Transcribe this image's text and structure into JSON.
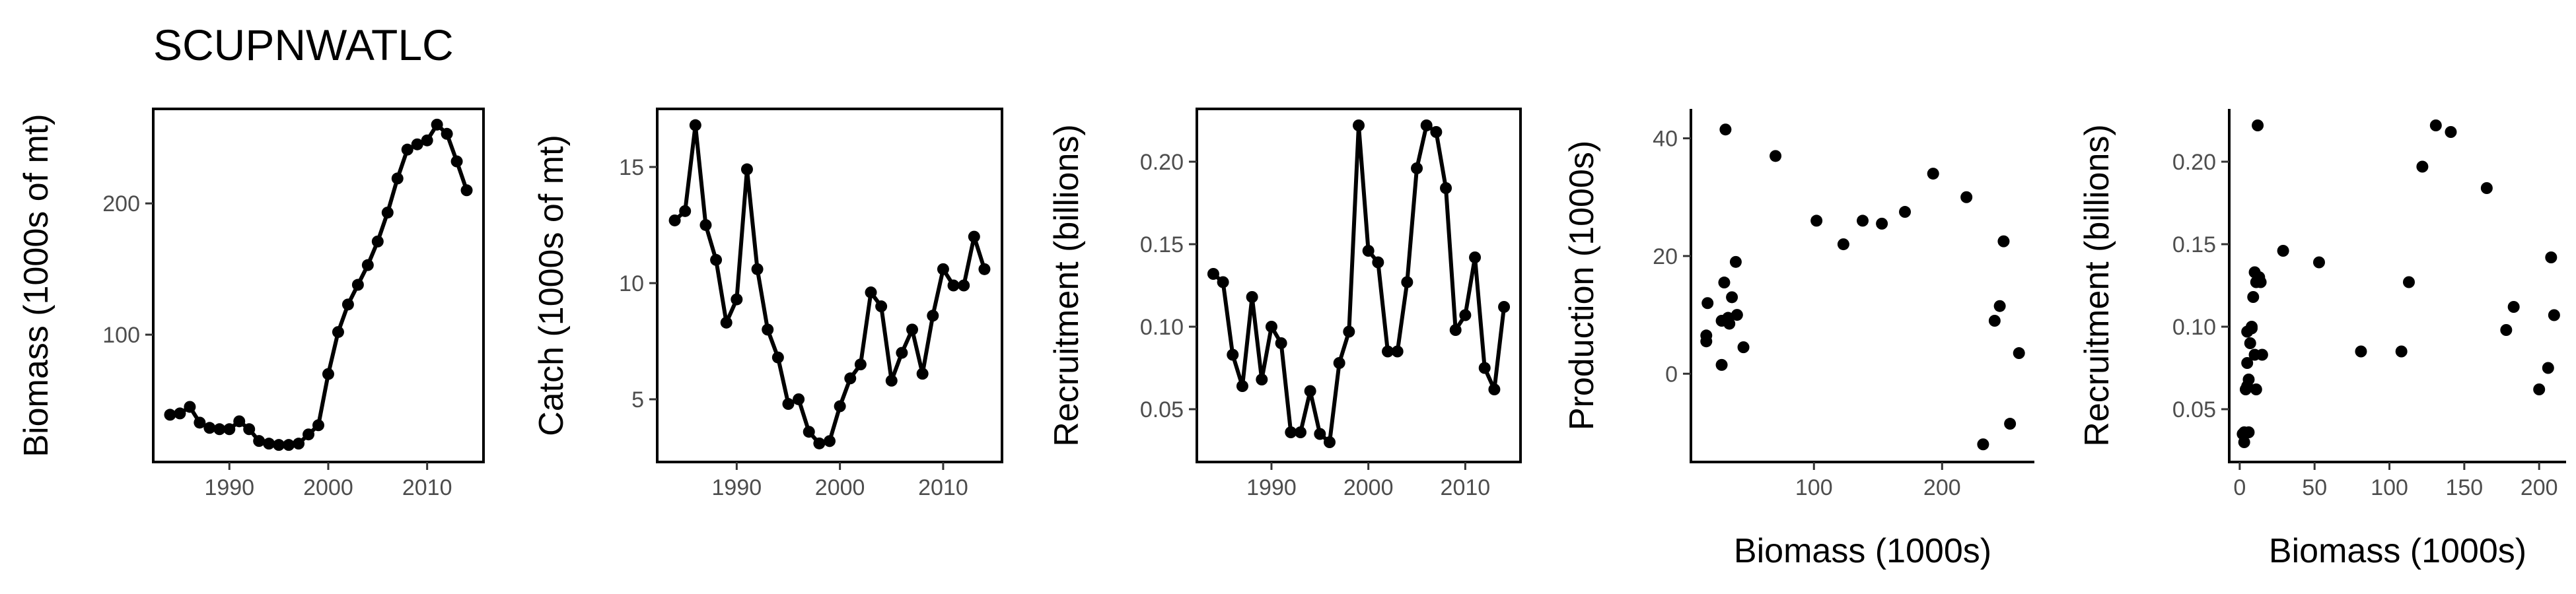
{
  "title": "SCUPNWATLC",
  "colors": {
    "ink": "#000000",
    "tick_text": "#4d4d4d"
  },
  "chart_data": [
    {
      "id": "biomass",
      "type": "line",
      "xlabel": "",
      "ylabel": "Biomass (1000s of mt)",
      "xlim": [
        1982.3,
        2015.7
      ],
      "ylim": [
        3,
        272
      ],
      "xticks": [
        1990,
        2000,
        2010
      ],
      "yticks": [
        100,
        200
      ],
      "x": [
        1984,
        1985,
        1986,
        1987,
        1988,
        1989,
        1990,
        1991,
        1992,
        1993,
        1994,
        1995,
        1996,
        1997,
        1998,
        1999,
        2000,
        2001,
        2002,
        2003,
        2004,
        2005,
        2006,
        2007,
        2008,
        2009,
        2010,
        2011,
        2012,
        2013,
        2014
      ],
      "y": [
        39,
        40,
        45,
        33,
        29,
        28,
        28,
        34,
        28,
        19,
        17,
        16,
        16,
        17,
        24,
        31,
        70,
        102,
        123,
        138,
        153,
        171,
        193,
        219,
        241,
        245,
        248,
        260,
        253,
        232,
        210
      ]
    },
    {
      "id": "catch",
      "type": "line",
      "xlabel": "",
      "ylabel": "Catch (1000s of mt)",
      "xlim": [
        1982.3,
        2015.7
      ],
      "ylim": [
        2.3,
        17.5
      ],
      "xticks": [
        1990,
        2000,
        2010
      ],
      "yticks": [
        5,
        10,
        15
      ],
      "x": [
        1984,
        1985,
        1986,
        1987,
        1988,
        1989,
        1990,
        1991,
        1992,
        1993,
        1994,
        1995,
        1996,
        1997,
        1998,
        1999,
        2000,
        2001,
        2002,
        2003,
        2004,
        2005,
        2006,
        2007,
        2008,
        2009,
        2010,
        2011,
        2012,
        2013,
        2014
      ],
      "y": [
        12.7,
        13.1,
        16.8,
        12.5,
        11.0,
        8.3,
        9.3,
        14.9,
        10.6,
        8.0,
        6.8,
        4.8,
        5.0,
        3.6,
        3.1,
        3.2,
        4.7,
        5.9,
        6.5,
        9.6,
        9.0,
        5.8,
        7.0,
        8.0,
        6.1,
        8.6,
        10.6,
        9.9,
        9.9,
        12.0,
        10.6
      ]
    },
    {
      "id": "recruitment",
      "type": "line",
      "xlabel": "",
      "ylabel": "Recruitment (billions)",
      "xlim": [
        1982.3,
        2015.7
      ],
      "ylim": [
        0.018,
        0.232
      ],
      "xticks": [
        1990,
        2000,
        2010
      ],
      "yticks": [
        0.05,
        0.1,
        0.15,
        0.2
      ],
      "x": [
        1984,
        1985,
        1986,
        1987,
        1988,
        1989,
        1990,
        1991,
        1992,
        1993,
        1994,
        1995,
        1996,
        1997,
        1998,
        1999,
        2000,
        2001,
        2002,
        2003,
        2004,
        2005,
        2006,
        2007,
        2008,
        2009,
        2010,
        2011,
        2012,
        2013,
        2014
      ],
      "y": [
        0.132,
        0.127,
        0.083,
        0.064,
        0.118,
        0.068,
        0.1,
        0.09,
        0.036,
        0.036,
        0.061,
        0.035,
        0.03,
        0.078,
        0.097,
        0.222,
        0.146,
        0.139,
        0.085,
        0.085,
        0.127,
        0.196,
        0.222,
        0.218,
        0.184,
        0.098,
        0.107,
        0.142,
        0.075,
        0.062,
        0.112
      ]
    },
    {
      "id": "production",
      "type": "scatter",
      "xlabel": "Biomass (1000s)",
      "ylabel": "Production (1000s)",
      "xlim": [
        4,
        272
      ],
      "ylim": [
        -15,
        45
      ],
      "xticks": [
        100,
        200
      ],
      "yticks": [
        0,
        20,
        40
      ],
      "x": [
        16,
        16,
        17,
        28,
        28,
        30,
        31,
        33,
        34,
        36,
        39,
        40,
        45,
        70,
        102,
        123,
        138,
        153,
        171,
        193,
        219,
        232,
        241,
        245,
        248,
        253,
        260
      ],
      "y": [
        5.5,
        6.5,
        12,
        9,
        1.5,
        15.5,
        41.5,
        9.5,
        8.5,
        13,
        19,
        10,
        4.5,
        37,
        26,
        22,
        26,
        25.5,
        27.5,
        34,
        30,
        -12,
        9,
        11.5,
        22.5,
        -8.5,
        3.5
      ]
    },
    {
      "id": "recruit-biomass",
      "type": "scatter",
      "xlabel": "Biomass (1000s)",
      "ylabel": "Recruitment (billions)",
      "xlim": [
        -7,
        218
      ],
      "ylim": [
        0.018,
        0.232
      ],
      "xticks": [
        0,
        50,
        100,
        150,
        200
      ],
      "yticks": [
        0.05,
        0.1,
        0.15,
        0.2
      ],
      "x": [
        2,
        3,
        3,
        4,
        5,
        5,
        5,
        6,
        6,
        7,
        8,
        8,
        9,
        10,
        10,
        11,
        11,
        12,
        13,
        14,
        15,
        29,
        53,
        81,
        108,
        113,
        122,
        131,
        141,
        165,
        178,
        183,
        200,
        206,
        208,
        210
      ],
      "y": [
        0.035,
        0.03,
        0.036,
        0.062,
        0.078,
        0.097,
        0.064,
        0.068,
        0.036,
        0.09,
        0.099,
        0.1,
        0.118,
        0.083,
        0.133,
        0.062,
        0.127,
        0.222,
        0.13,
        0.127,
        0.083,
        0.146,
        0.139,
        0.085,
        0.085,
        0.127,
        0.197,
        0.222,
        0.218,
        0.184,
        0.098,
        0.112,
        0.062,
        0.075,
        0.142,
        0.107
      ]
    }
  ]
}
